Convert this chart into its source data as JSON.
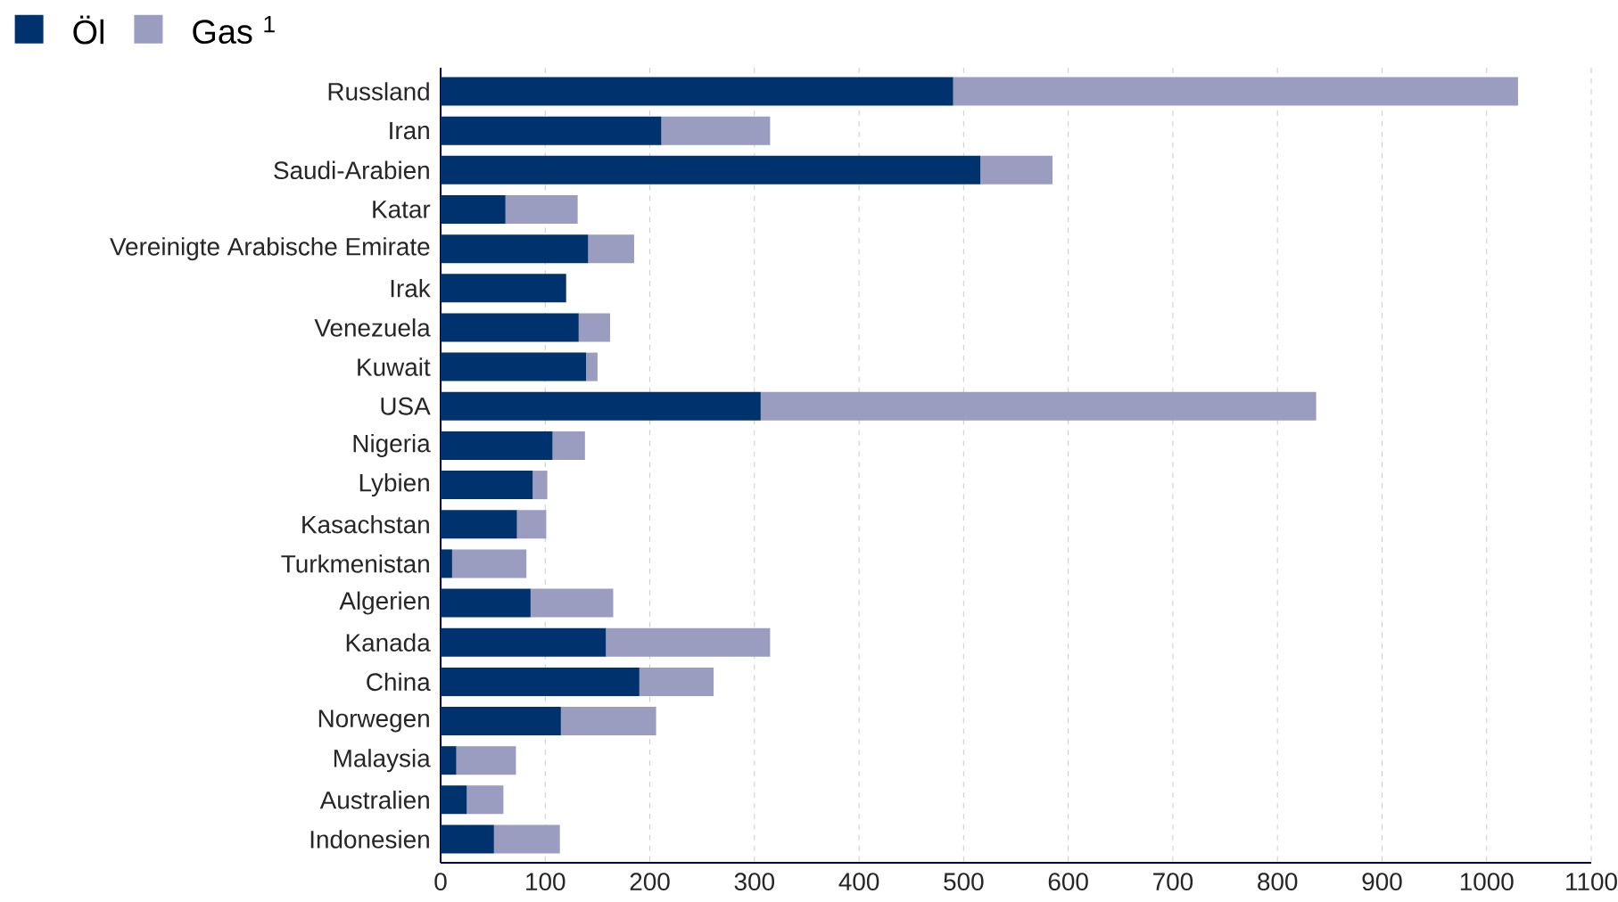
{
  "chart_data": {
    "type": "bar",
    "orientation": "horizontal",
    "stacked": true,
    "categories": [
      "Russland",
      "Iran",
      "Saudi-Arabien",
      "Katar",
      "Vereinigte Arabische Emirate",
      "Irak",
      "Venezuela",
      "Kuwait",
      "USA",
      "Nigeria",
      "Lybien",
      "Kasachstan",
      "Turkmenistan",
      "Algerien",
      "Kanada",
      "China",
      "Norwegen",
      "Malaysia",
      "Australien",
      "Indonesien"
    ],
    "series": [
      {
        "name": "Öl",
        "color": "#00336e",
        "values": [
          490,
          211,
          516,
          62,
          141,
          120,
          132,
          139,
          306,
          107,
          88,
          73,
          11,
          86,
          158,
          190,
          115,
          15,
          25,
          51
        ]
      },
      {
        "name": "Gas $^{1}$",
        "color": "#9a9cc0",
        "values": [
          540,
          104,
          69,
          69,
          44,
          0,
          30,
          11,
          531,
          31,
          14,
          28,
          71,
          79,
          157,
          71,
          91,
          57,
          35,
          63
        ]
      }
    ],
    "xlim": [
      0,
      1100
    ],
    "xticks": [
      0,
      100,
      200,
      300,
      400,
      500,
      600,
      700,
      800,
      900,
      1000,
      1100
    ],
    "grid": "x",
    "legend": "top left"
  }
}
